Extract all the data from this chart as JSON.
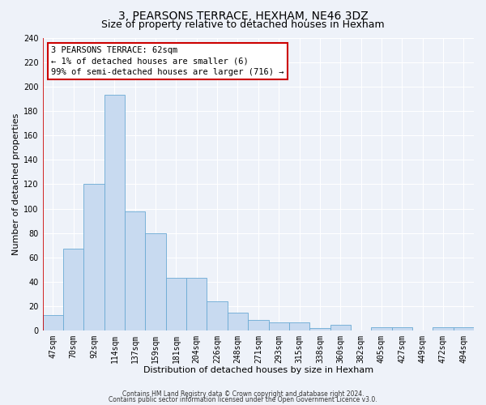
{
  "title": "3, PEARSONS TERRACE, HEXHAM, NE46 3DZ",
  "subtitle": "Size of property relative to detached houses in Hexham",
  "xlabel": "Distribution of detached houses by size in Hexham",
  "ylabel": "Number of detached properties",
  "bar_labels": [
    "47sqm",
    "70sqm",
    "92sqm",
    "114sqm",
    "137sqm",
    "159sqm",
    "181sqm",
    "204sqm",
    "226sqm",
    "248sqm",
    "271sqm",
    "293sqm",
    "315sqm",
    "338sqm",
    "360sqm",
    "382sqm",
    "405sqm",
    "427sqm",
    "449sqm",
    "472sqm",
    "494sqm"
  ],
  "bar_values": [
    13,
    67,
    120,
    193,
    98,
    80,
    43,
    43,
    24,
    15,
    9,
    7,
    7,
    2,
    5,
    0,
    3,
    3,
    0,
    3,
    3
  ],
  "bar_color": "#c8daf0",
  "bar_edge_color": "#6aaad4",
  "property_line_color": "#cc0000",
  "ylim": [
    0,
    240
  ],
  "yticks": [
    0,
    20,
    40,
    60,
    80,
    100,
    120,
    140,
    160,
    180,
    200,
    220,
    240
  ],
  "annotation_text": "3 PEARSONS TERRACE: 62sqm\n← 1% of detached houses are smaller (6)\n99% of semi-detached houses are larger (716) →",
  "annotation_box_color": "#ffffff",
  "annotation_box_edge_color": "#cc0000",
  "footer_line1": "Contains HM Land Registry data © Crown copyright and database right 2024.",
  "footer_line2": "Contains public sector information licensed under the Open Government Licence v3.0.",
  "background_color": "#eef2f9",
  "plot_bg_color": "#eef2f9",
  "grid_color": "#ffffff",
  "title_fontsize": 10,
  "subtitle_fontsize": 9,
  "axis_label_fontsize": 8,
  "tick_fontsize": 7,
  "annotation_fontsize": 7.5,
  "footer_fontsize": 5.5
}
